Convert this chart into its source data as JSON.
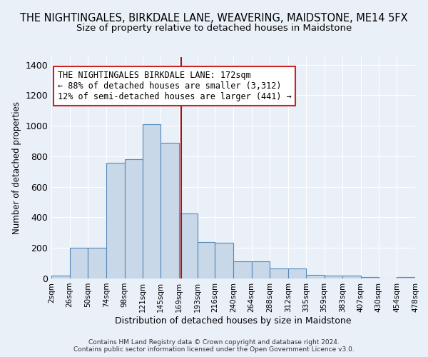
{
  "title": "THE NIGHTINGALES, BIRKDALE LANE, WEAVERING, MAIDSTONE, ME14 5FX",
  "subtitle": "Size of property relative to detached houses in Maidstone",
  "xlabel": "Distribution of detached houses by size in Maidstone",
  "ylabel": "Number of detached properties",
  "footer_line1": "Contains HM Land Registry data © Crown copyright and database right 2024.",
  "footer_line2": "Contains public sector information licensed under the Open Government Licence v3.0.",
  "bin_edges": [
    2,
    26,
    50,
    74,
    98,
    121,
    145,
    169,
    193,
    216,
    240,
    264,
    288,
    312,
    335,
    359,
    383,
    407,
    430,
    454,
    478
  ],
  "bar_heights": [
    20,
    200,
    200,
    760,
    780,
    1010,
    890,
    425,
    240,
    235,
    110,
    110,
    65,
    65,
    25,
    20,
    20,
    10,
    0,
    10
  ],
  "bar_color": "#c8d8e8",
  "bar_edge_color": "#5588bb",
  "property_value": 172,
  "property_line_color": "#aa1111",
  "annotation_text": "THE NIGHTINGALES BIRKDALE LANE: 172sqm\n← 88% of detached houses are smaller (3,312)\n12% of semi-detached houses are larger (441) →",
  "annotation_box_color": "#ffffff",
  "annotation_box_edge_color": "#cc2222",
  "ylim": [
    0,
    1450
  ],
  "yticks": [
    0,
    200,
    400,
    600,
    800,
    1000,
    1200,
    1400
  ],
  "background_color": "#eaf0f8",
  "grid_color": "#ffffff",
  "title_fontsize": 10.5,
  "subtitle_fontsize": 9.5,
  "tick_label_fontsize": 7.5,
  "annotation_fontsize": 8.5,
  "ylabel_fontsize": 8.5,
  "xlabel_fontsize": 9
}
